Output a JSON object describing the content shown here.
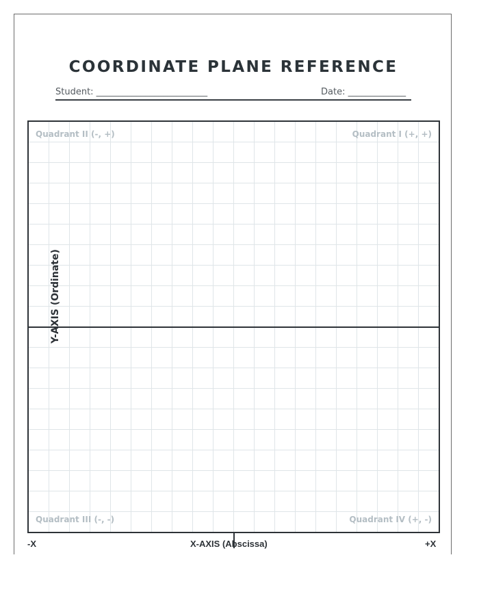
{
  "title": "COORDINATE PLANE REFERENCE",
  "fields": {
    "student": "Student: _________________________",
    "date": "Date: _____________"
  },
  "quadrants": {
    "q1": "Quadrant I (+, +)",
    "q2": "Quadrant II (-, +)",
    "q3": "Quadrant III (-, -)",
    "q4": "Quadrant IV (+, -)"
  },
  "axes": {
    "y_label": "Y-AXIS (Ordinate)",
    "x_label": "X-AXIS (Abscissa)",
    "neg_x": "-X",
    "pos_x": "+X"
  },
  "colors": {
    "ink": "#2d3237",
    "grid": "#dfe5e8",
    "quadrant_text": "#b4bec4"
  }
}
